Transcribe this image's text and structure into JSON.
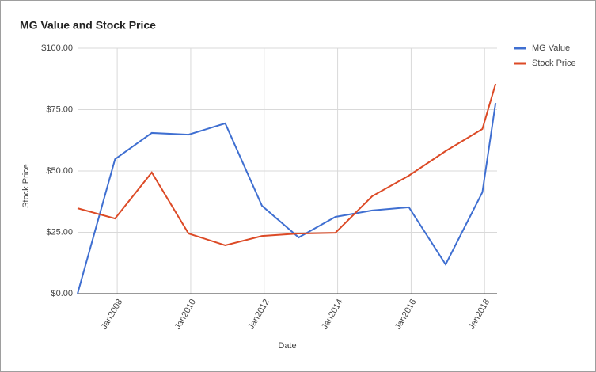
{
  "chart_data": {
    "type": "line",
    "title": "MG Value and Stock Price",
    "x_label": "Date",
    "y_label": "Stock Price",
    "x": [
      2006.92,
      2007.94,
      2008.94,
      2009.94,
      2010.94,
      2011.94,
      2012.94,
      2013.94,
      2014.94,
      2015.94,
      2016.94,
      2017.94,
      2018.3
    ],
    "series": [
      {
        "name": "MG Value",
        "color": "#3f6fd1",
        "values": [
          0,
          54.8,
          65.5,
          64.8,
          69.4,
          35.8,
          22.9,
          31.3,
          33.9,
          35.2,
          11.9,
          41.3,
          77.7
        ]
      },
      {
        "name": "Stock Price",
        "color": "#dc4a26",
        "values": [
          34.8,
          30.6,
          49.4,
          24.5,
          19.7,
          23.5,
          24.5,
          24.8,
          39.7,
          48.1,
          58.1,
          67.1,
          85.5
        ]
      }
    ],
    "xlim": [
      2006.92,
      2018.34
    ],
    "xticks": [
      {
        "value": 2008,
        "label": "Jan2008"
      },
      {
        "value": 2010,
        "label": "Jan2010"
      },
      {
        "value": 2012,
        "label": "Jan2012"
      },
      {
        "value": 2014,
        "label": "Jan2014"
      },
      {
        "value": 2016,
        "label": "Jan2016"
      },
      {
        "value": 2018,
        "label": "Jan2018"
      }
    ],
    "ylim": [
      0,
      100
    ],
    "yticks": [
      {
        "value": 0,
        "label": "$0.00"
      },
      {
        "value": 25,
        "label": "$25.00"
      },
      {
        "value": 50,
        "label": "$50.00"
      },
      {
        "value": 75,
        "label": "$75.00"
      },
      {
        "value": 100,
        "label": "$100.00"
      }
    ],
    "grid": true,
    "legend": "right"
  }
}
